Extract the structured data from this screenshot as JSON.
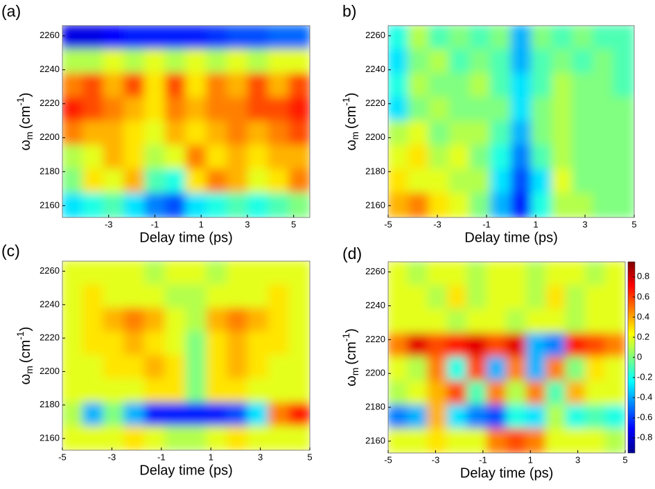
{
  "chart_data": [
    {
      "type": "heatmap",
      "title": "(a)",
      "xlabel": "Delay time (ps)",
      "ylabel": {
        "symbol": "ω",
        "sub": "m",
        "unit": "(cm",
        "sup": "-1",
        "close": ")"
      },
      "xlim": [
        -5,
        5.7
      ],
      "xticks": [
        -3,
        -1,
        1,
        3,
        5
      ],
      "ylim": [
        2153,
        2266
      ],
      "yticks": [
        2160,
        2180,
        2200,
        2220,
        2240,
        2260
      ],
      "z": [
        [
          -0.8,
          -0.8,
          -0.75,
          -0.7,
          -0.7,
          -0.7,
          -0.7,
          -0.65,
          -0.6,
          -0.6,
          -0.55,
          -0.55
        ],
        [
          0.1,
          0.1,
          0.2,
          0.1,
          0.2,
          0.1,
          0.2,
          0.1,
          0.2,
          0.1,
          0.2,
          0.2
        ],
        [
          0.5,
          0.6,
          0.4,
          0.6,
          0.3,
          0.6,
          0.3,
          0.5,
          0.4,
          0.6,
          0.4,
          0.6
        ],
        [
          0.7,
          0.6,
          0.5,
          0.4,
          0.3,
          0.5,
          0.4,
          0.5,
          0.5,
          0.6,
          0.6,
          0.7
        ],
        [
          0.5,
          0.4,
          0.4,
          0.3,
          0.2,
          0.4,
          0.3,
          0.4,
          0.5,
          0.4,
          0.5,
          0.6
        ],
        [
          0.1,
          0.2,
          0.4,
          0.3,
          0.1,
          0.2,
          0.5,
          0.3,
          0.4,
          0.3,
          0.4,
          0.4
        ],
        [
          0.0,
          0.3,
          0.2,
          0.4,
          -0.1,
          -0.2,
          0.3,
          0.5,
          0.4,
          0.2,
          0.3,
          0.5
        ],
        [
          -0.3,
          -0.2,
          -0.1,
          -0.3,
          -0.5,
          -0.6,
          -0.3,
          -0.2,
          -0.1,
          -0.2,
          -0.1,
          0.0
        ]
      ]
    },
    {
      "type": "heatmap",
      "title": "b)",
      "xlabel": "Delay time (ps)",
      "ylabel": {
        "symbol": "ω",
        "sub": "m",
        "unit": "(cm",
        "sup": "-1",
        "close": ")"
      },
      "xlim": [
        -5,
        5
      ],
      "xticks": [
        -5,
        -3,
        -1,
        1,
        3,
        5
      ],
      "ylim": [
        2153,
        2266
      ],
      "yticks": [
        2160,
        2180,
        2200,
        2220,
        2240,
        2260
      ],
      "z": [
        [
          -0.2,
          0.1,
          -0.1,
          0,
          -0.1,
          0,
          -0.4,
          0,
          -0.1,
          0,
          -0.1,
          -0.1
        ],
        [
          -0.3,
          0,
          0.1,
          -0.1,
          0,
          -0.1,
          -0.4,
          -0.1,
          0,
          -0.1,
          0,
          -0.1
        ],
        [
          -0.2,
          0.1,
          0,
          0,
          0.1,
          -0.1,
          -0.3,
          -0.1,
          0.1,
          0,
          0,
          -0.1
        ],
        [
          -0.3,
          0,
          0.1,
          0,
          0,
          0,
          -0.3,
          0,
          0.1,
          0,
          0,
          0
        ],
        [
          0.1,
          0.2,
          0,
          0.1,
          0.1,
          -0.1,
          -0.4,
          0,
          0.1,
          0,
          0,
          0
        ],
        [
          0.2,
          0.3,
          0.1,
          0.2,
          0,
          -0.2,
          -0.5,
          -0.1,
          0.1,
          0,
          0,
          0
        ],
        [
          0.3,
          0.2,
          0.2,
          0.1,
          0.1,
          -0.3,
          -0.6,
          -0.3,
          0.2,
          0,
          0,
          0
        ],
        [
          0.4,
          0.5,
          0.3,
          0.2,
          0,
          -0.4,
          -0.7,
          -0.2,
          0.1,
          0.1,
          0,
          0
        ]
      ]
    },
    {
      "type": "heatmap",
      "title": "(c)",
      "xlabel": "Delay time (ps)",
      "ylabel": {
        "symbol": "ω",
        "sub": "m",
        "unit": "(cm",
        "sup": "-1",
        "close": ")"
      },
      "xlim": [
        -5,
        5
      ],
      "xticks": [
        -5,
        -3,
        -1,
        1,
        3,
        5
      ],
      "ylim": [
        2153,
        2266
      ],
      "yticks": [
        2160,
        2180,
        2200,
        2220,
        2240,
        2260
      ],
      "z": [
        [
          0.2,
          0.2,
          0.2,
          0.2,
          0.1,
          0.2,
          0.2,
          0.1,
          0.2,
          0.2,
          0.2,
          0.2
        ],
        [
          0.2,
          0.3,
          0.2,
          0.2,
          0.2,
          0.1,
          0.1,
          0.2,
          0.2,
          0.2,
          0.3,
          0.2
        ],
        [
          0.2,
          0.3,
          0.4,
          0.5,
          0.4,
          0.2,
          0.1,
          0.4,
          0.5,
          0.4,
          0.3,
          0.2
        ],
        [
          0.2,
          0.3,
          0.3,
          0.4,
          0.3,
          0.2,
          0,
          0.3,
          0.4,
          0.3,
          0.3,
          0.2
        ],
        [
          0.2,
          0.2,
          0.3,
          0.3,
          0.4,
          0.3,
          0,
          0.3,
          0.4,
          0.3,
          0.2,
          0.2
        ],
        [
          0.2,
          0.2,
          0.2,
          0.2,
          0.3,
          0.3,
          0,
          0.3,
          0.3,
          0.2,
          0.2,
          0.2
        ],
        [
          0.1,
          -0.4,
          0,
          -0.4,
          -0.7,
          -0.7,
          -0.7,
          -0.7,
          -0.6,
          -0.3,
          0.5,
          0.7
        ],
        [
          0.2,
          0.2,
          0.2,
          0.3,
          0.2,
          0.1,
          0.1,
          0.2,
          0.3,
          0.2,
          0.2,
          0.2
        ]
      ]
    },
    {
      "type": "heatmap",
      "title": "(d)",
      "xlabel": "Delay time (ps)",
      "ylabel": {
        "symbol": "ω",
        "sub": "m",
        "unit": "(cm",
        "sup": "-1",
        "close": ")"
      },
      "xlim": [
        -5,
        5
      ],
      "xticks": [
        -5,
        -3,
        -1,
        1,
        3,
        5
      ],
      "ylim": [
        2153,
        2266
      ],
      "yticks": [
        2160,
        2180,
        2200,
        2220,
        2240,
        2260
      ],
      "z": [
        [
          0.2,
          0.1,
          0.2,
          0.2,
          0.1,
          0.2,
          0.2,
          0.1,
          0.2,
          0.2,
          0.1,
          0.2
        ],
        [
          0.2,
          0.2,
          0.1,
          0.3,
          0.1,
          0.2,
          0.2,
          0.1,
          0.3,
          0.1,
          0.2,
          0.2
        ],
        [
          0.2,
          0.2,
          0.2,
          0.1,
          0.2,
          0.2,
          0.1,
          0.2,
          0.2,
          0.1,
          0.2,
          0.2
        ],
        [
          0.5,
          0.8,
          0.6,
          0.7,
          0.8,
          0.6,
          0.8,
          -0.4,
          -0.5,
          0.7,
          0.6,
          0.5
        ],
        [
          0.2,
          0.1,
          0.5,
          -0.2,
          0.6,
          -0.4,
          0.5,
          -0.4,
          0.5,
          0,
          0.3,
          0.2
        ],
        [
          0.1,
          0.2,
          0.4,
          0.6,
          -0.1,
          0.5,
          0.1,
          0.5,
          -0.1,
          0.4,
          0.2,
          0.2
        ],
        [
          -0.5,
          -0.4,
          0.4,
          -0.3,
          -0.5,
          -0.6,
          -0.2,
          -0.3,
          0.1,
          -0.2,
          -0.1,
          -0.2
        ],
        [
          0.2,
          0.2,
          0.3,
          0.2,
          0.2,
          0.5,
          0.6,
          0.5,
          0.2,
          0.2,
          0.2,
          0.1
        ]
      ],
      "colorbar": {
        "lim": [
          -0.95,
          0.95
        ],
        "ticks": [
          0.8,
          0.6,
          0.4,
          0.2,
          0,
          -0.2,
          -0.4,
          -0.6,
          -0.8
        ]
      }
    }
  ]
}
